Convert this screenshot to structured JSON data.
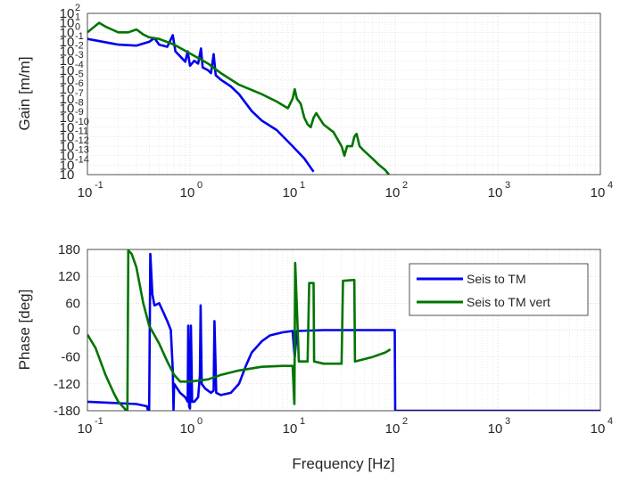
{
  "chart_data": [
    {
      "type": "line",
      "panel": "gain",
      "title": "",
      "xlabel": "",
      "ylabel": "Gain [m/m]",
      "xscale": "log",
      "yscale": "log",
      "xlim": [
        0.1,
        10000
      ],
      "ylim": [
        1e-15,
        100
      ],
      "grid": true,
      "x_ticks": [
        {
          "base": "10",
          "exp": "-1",
          "value": 0.1
        },
        {
          "base": "10",
          "exp": "0",
          "value": 1
        },
        {
          "base": "10",
          "exp": "1",
          "value": 10
        },
        {
          "base": "10",
          "exp": "2",
          "value": 100
        },
        {
          "base": "10",
          "exp": "3",
          "value": 1000
        },
        {
          "base": "10",
          "exp": "4",
          "value": 10000
        }
      ],
      "y_ticks": [
        {
          "base": "10",
          "exp": "2",
          "value": 100
        },
        {
          "base": "10",
          "exp": "1",
          "value": 10
        },
        {
          "base": "10",
          "exp": "0",
          "value": 1
        },
        {
          "base": "10",
          "exp": "-1",
          "value": 0.1
        },
        {
          "base": "10",
          "exp": "-2",
          "value": 0.01
        },
        {
          "base": "10",
          "exp": "-3",
          "value": 0.001
        },
        {
          "base": "10",
          "exp": "-4",
          "value": 0.0001
        },
        {
          "base": "10",
          "exp": "-5",
          "value": 1e-05
        },
        {
          "base": "10",
          "exp": "-6",
          "value": 1e-06
        },
        {
          "base": "10",
          "exp": "-7",
          "value": 1e-07
        },
        {
          "base": "10",
          "exp": "-8",
          "value": 1e-08
        },
        {
          "base": "10",
          "exp": "-9",
          "value": 1e-09
        },
        {
          "base": "10",
          "exp": "-10",
          "value": 1e-10
        },
        {
          "base": "10",
          "exp": "-11",
          "value": 1e-11
        },
        {
          "base": "10",
          "exp": "-12",
          "value": 1e-12
        },
        {
          "base": "10",
          "exp": "-13",
          "value": 1e-13
        },
        {
          "base": "10",
          "exp": "-14",
          "value": 1e-14
        },
        {
          "base": "10",
          "exp": "",
          "value": 1e-15
        }
      ],
      "series": [
        {
          "name": "Seis to TM",
          "color": "#0000ee",
          "points": [
            [
              0.1,
              0.2
            ],
            [
              0.2,
              0.05
            ],
            [
              0.3,
              0.04
            ],
            [
              0.4,
              0.1
            ],
            [
              0.45,
              0.25
            ],
            [
              0.5,
              0.05
            ],
            [
              0.6,
              0.03
            ],
            [
              0.68,
              0.5
            ],
            [
              0.72,
              0.01
            ],
            [
              0.8,
              0.003
            ],
            [
              0.9,
              0.0008
            ],
            [
              0.95,
              0.01
            ],
            [
              1.0,
              0.0003
            ],
            [
              1.1,
              0.001
            ],
            [
              1.2,
              0.0005
            ],
            [
              1.28,
              0.02
            ],
            [
              1.33,
              0.0002
            ],
            [
              1.5,
              0.0001
            ],
            [
              1.6,
              5e-05
            ],
            [
              1.7,
              0.005
            ],
            [
              1.78,
              3e-05
            ],
            [
              2,
              1e-05
            ],
            [
              2.5,
              2e-06
            ],
            [
              3,
              3e-07
            ],
            [
              4,
              5e-09
            ],
            [
              5,
              5e-10
            ],
            [
              7,
              5e-11
            ],
            [
              10,
              1e-12
            ],
            [
              13,
              5e-14
            ],
            [
              16,
              2e-15
            ]
          ]
        },
        {
          "name": "Seis to TM vert",
          "color": "#007500",
          "points": [
            [
              0.1,
              1
            ],
            [
              0.13,
              10
            ],
            [
              0.15,
              4
            ],
            [
              0.2,
              1
            ],
            [
              0.25,
              1
            ],
            [
              0.3,
              2
            ],
            [
              0.35,
              0.6
            ],
            [
              0.4,
              0.3
            ],
            [
              0.5,
              0.2
            ],
            [
              0.7,
              0.05
            ],
            [
              1,
              0.006
            ],
            [
              1.5,
              0.0005
            ],
            [
              2,
              5e-05
            ],
            [
              3,
              3e-06
            ],
            [
              5,
              3e-07
            ],
            [
              7,
              5e-08
            ],
            [
              9,
              1e-08
            ],
            [
              10,
              1e-07
            ],
            [
              10.5,
              1e-06
            ],
            [
              11,
              1e-07
            ],
            [
              12,
              3e-08
            ],
            [
              13,
              1e-09
            ],
            [
              14,
              2e-10
            ],
            [
              15,
              1e-10
            ],
            [
              16,
              1e-09
            ],
            [
              17,
              3e-09
            ],
            [
              20,
              2e-10
            ],
            [
              25,
              3e-11
            ],
            [
              30,
              1e-12
            ],
            [
              32,
              1e-13
            ],
            [
              34,
              1e-12
            ],
            [
              38,
              1e-12
            ],
            [
              40,
              1e-11
            ],
            [
              42,
              2e-11
            ],
            [
              45,
              1e-12
            ],
            [
              50,
              3e-13
            ],
            [
              60,
              5e-14
            ],
            [
              70,
              1e-14
            ],
            [
              80,
              3e-15
            ],
            [
              87,
              1e-15
            ]
          ]
        }
      ]
    },
    {
      "type": "line",
      "panel": "phase",
      "title": "",
      "xlabel": "Frequency [Hz]",
      "ylabel": "Phase [deg]",
      "xscale": "log",
      "xlim": [
        0.1,
        10000
      ],
      "ylim": [
        -180,
        180
      ],
      "grid": true,
      "legend": "top-right",
      "x_ticks": [
        {
          "base": "10",
          "exp": "-1",
          "value": 0.1
        },
        {
          "base": "10",
          "exp": "0",
          "value": 1
        },
        {
          "base": "10",
          "exp": "1",
          "value": 10
        },
        {
          "base": "10",
          "exp": "2",
          "value": 100
        },
        {
          "base": "10",
          "exp": "3",
          "value": 1000
        },
        {
          "base": "10",
          "exp": "4",
          "value": 10000
        }
      ],
      "y_ticks": [
        "180",
        "120",
        "60",
        "0",
        "-60",
        "-120",
        "-180"
      ],
      "series": [
        {
          "name": "Seis to TM",
          "color": "#0000ee",
          "points": [
            [
              0.1,
              -160
            ],
            [
              0.2,
              -163
            ],
            [
              0.3,
              -165
            ],
            [
              0.38,
              -170
            ],
            [
              0.39,
              -180
            ],
            [
              0.4,
              -180
            ],
            [
              0.41,
              170
            ],
            [
              0.43,
              80
            ],
            [
              0.45,
              55
            ],
            [
              0.5,
              60
            ],
            [
              0.55,
              40
            ],
            [
              0.6,
              20
            ],
            [
              0.65,
              0
            ],
            [
              0.68,
              -90
            ],
            [
              0.69,
              -180
            ],
            [
              0.7,
              -120
            ],
            [
              0.8,
              -140
            ],
            [
              0.9,
              -150
            ],
            [
              0.95,
              -160
            ],
            [
              0.96,
              10
            ],
            [
              0.98,
              -170
            ],
            [
              1.0,
              -175
            ],
            [
              1.02,
              10
            ],
            [
              1.05,
              -160
            ],
            [
              1.1,
              -160
            ],
            [
              1.2,
              -150
            ],
            [
              1.25,
              -100
            ],
            [
              1.27,
              55
            ],
            [
              1.3,
              -120
            ],
            [
              1.4,
              -130
            ],
            [
              1.6,
              -140
            ],
            [
              1.7,
              -135
            ],
            [
              1.73,
              20
            ],
            [
              1.8,
              -140
            ],
            [
              2,
              -145
            ],
            [
              2.5,
              -140
            ],
            [
              3,
              -120
            ],
            [
              3.5,
              -80
            ],
            [
              4,
              -50
            ],
            [
              5,
              -25
            ],
            [
              6,
              -12
            ],
            [
              8,
              -5
            ],
            [
              10,
              -2
            ],
            [
              10.5,
              -60
            ],
            [
              11,
              -2
            ],
            [
              20,
              0
            ],
            [
              50,
              0
            ],
            [
              99,
              0
            ],
            [
              100,
              -180
            ],
            [
              10000,
              -180
            ]
          ]
        },
        {
          "name": "Seis to TM vert",
          "color": "#007500",
          "points": [
            [
              0.1,
              -10
            ],
            [
              0.12,
              -40
            ],
            [
              0.15,
              -100
            ],
            [
              0.18,
              -140
            ],
            [
              0.2,
              -160
            ],
            [
              0.23,
              -175
            ],
            [
              0.24,
              -180
            ],
            [
              0.245,
              -180
            ],
            [
              0.25,
              178
            ],
            [
              0.27,
              170
            ],
            [
              0.3,
              140
            ],
            [
              0.35,
              60
            ],
            [
              0.4,
              10
            ],
            [
              0.5,
              -30
            ],
            [
              0.6,
              -70
            ],
            [
              0.7,
              -100
            ],
            [
              0.8,
              -115
            ],
            [
              1,
              -115
            ],
            [
              1.5,
              -110
            ],
            [
              2,
              -100
            ],
            [
              3,
              -90
            ],
            [
              5,
              -82
            ],
            [
              8,
              -80
            ],
            [
              10,
              -80
            ],
            [
              10.4,
              -165
            ],
            [
              10.6,
              150
            ],
            [
              11,
              50
            ],
            [
              11.5,
              -70
            ],
            [
              12,
              -70
            ],
            [
              14,
              -70
            ],
            [
              14.5,
              105
            ],
            [
              16,
              105
            ],
            [
              16.2,
              -70
            ],
            [
              20,
              -75
            ],
            [
              30,
              -75
            ],
            [
              31,
              110
            ],
            [
              40,
              112
            ],
            [
              40.5,
              -70
            ],
            [
              60,
              -60
            ],
            [
              80,
              -50
            ],
            [
              90,
              -43
            ]
          ]
        }
      ]
    }
  ]
}
